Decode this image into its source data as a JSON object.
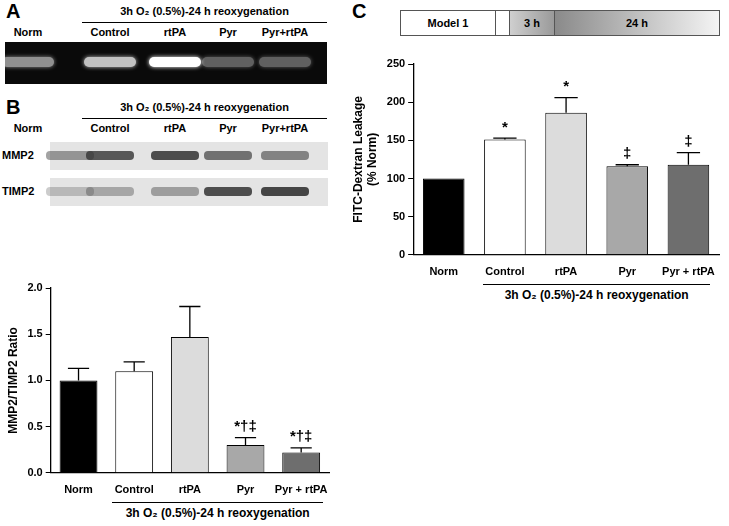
{
  "panels": {
    "A": {
      "label": "A",
      "header": "3h O₂ (0.5%)-24 h reoxygenation",
      "lanes": [
        "Norm",
        "Control",
        "rtPA",
        "Pyr",
        "Pyr+rtPA"
      ]
    },
    "B": {
      "label": "B",
      "header": "3h O₂ (0.5%)-24 h reoxygenation",
      "lanes": [
        "Norm",
        "Control",
        "rtPA",
        "Pyr",
        "Pyr+rtPA"
      ],
      "rows": [
        "MMP2",
        "TIMP2"
      ]
    },
    "C": {
      "label": "C",
      "schematic": [
        "Model 1",
        "3 h",
        "24 h"
      ]
    }
  },
  "chart_data": [
    {
      "type": "bar",
      "categories": [
        "Norm",
        "Control",
        "rtPA",
        "Pyr",
        "Pyr + rtPA"
      ],
      "values": [
        1.0,
        1.1,
        1.47,
        0.3,
        0.22
      ],
      "errors": [
        0.13,
        0.1,
        0.33,
        0.08,
        0.05
      ],
      "colors": [
        "#000000",
        "#ffffff",
        "#dcdcdc",
        "#a8a8a8",
        "#6e6e6e"
      ],
      "y_label": "MMP2/TIMP2 Ratio",
      "x_label": "3h O₂ (0.5%)-24 h reoxygenation",
      "ylim": [
        0,
        2
      ],
      "yticks": [
        {
          "value": 0,
          "label": "0.0"
        },
        {
          "value": 0.5,
          "label": "0.5"
        },
        {
          "value": 1,
          "label": "1.0"
        },
        {
          "value": 1.5,
          "label": "1.5"
        },
        {
          "value": 2,
          "label": "2.0"
        }
      ],
      "grid": false,
      "annotations": [
        {
          "category": "Pyr",
          "text": "*†‡"
        },
        {
          "category": "Pyr + rtPA",
          "text": "*†‡"
        }
      ]
    },
    {
      "type": "bar",
      "categories": [
        "Norm",
        "Control",
        "rtPA",
        "Pyr",
        "Pyr + rtPA"
      ],
      "values": [
        100,
        151,
        186,
        116,
        118
      ],
      "errors": [
        0,
        2,
        20,
        2,
        16
      ],
      "colors": [
        "#000000",
        "#ffffff",
        "#dcdcdc",
        "#a8a8a8",
        "#6e6e6e"
      ],
      "y_label": [
        "FITC-Dextran Leakage",
        "(% Norm)"
      ],
      "x_label": "3h O₂ (0.5%)-24 h reoxygenation",
      "ylim": [
        0,
        250
      ],
      "yticks": [
        0,
        50,
        100,
        150,
        200,
        250
      ],
      "grid": false,
      "annotations": [
        {
          "category": "Control",
          "text": "*"
        },
        {
          "category": "rtPA",
          "text": "*"
        },
        {
          "category": "Pyr",
          "text": "‡"
        },
        {
          "category": "Pyr + rtPA",
          "text": "‡"
        }
      ]
    }
  ]
}
